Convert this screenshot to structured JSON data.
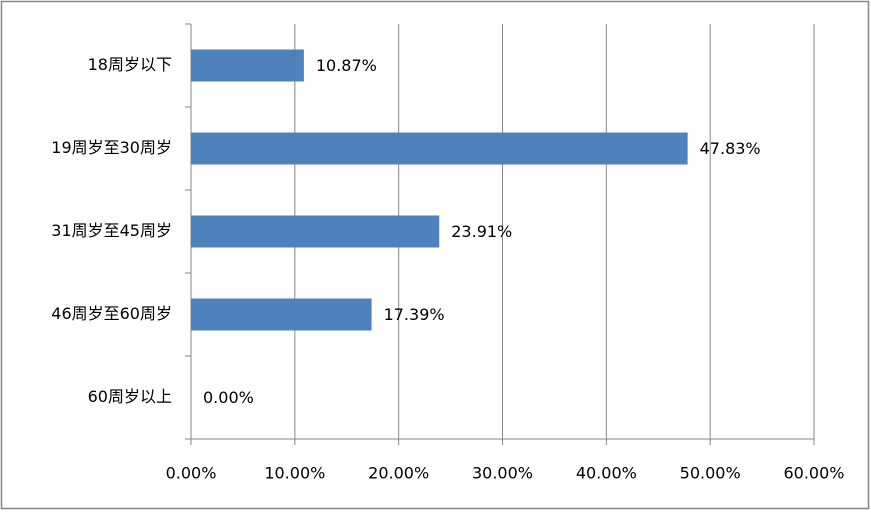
{
  "chart_data": {
    "type": "bar",
    "orientation": "horizontal",
    "categories": [
      "18周岁以下",
      "19周岁至30周岁",
      "31周岁至45周岁",
      "46周岁至60周岁",
      "60周岁以上"
    ],
    "values": [
      10.87,
      47.83,
      23.91,
      17.39,
      0
    ],
    "value_labels": [
      "10.87%",
      "47.83%",
      "23.91%",
      "17.39%",
      "0.00%"
    ],
    "color": "#4f81bd",
    "xlim": [
      0,
      60
    ],
    "xticks": [
      {
        "value": 0,
        "label": "0.00%"
      },
      {
        "value": 10,
        "label": "10.00%"
      },
      {
        "value": 20,
        "label": "20.00%"
      },
      {
        "value": 30,
        "label": "30.00%"
      },
      {
        "value": 40,
        "label": "40.00%"
      },
      {
        "value": 50,
        "label": "50.00%"
      },
      {
        "value": 60,
        "label": "60.00%"
      }
    ],
    "grid": true
  }
}
